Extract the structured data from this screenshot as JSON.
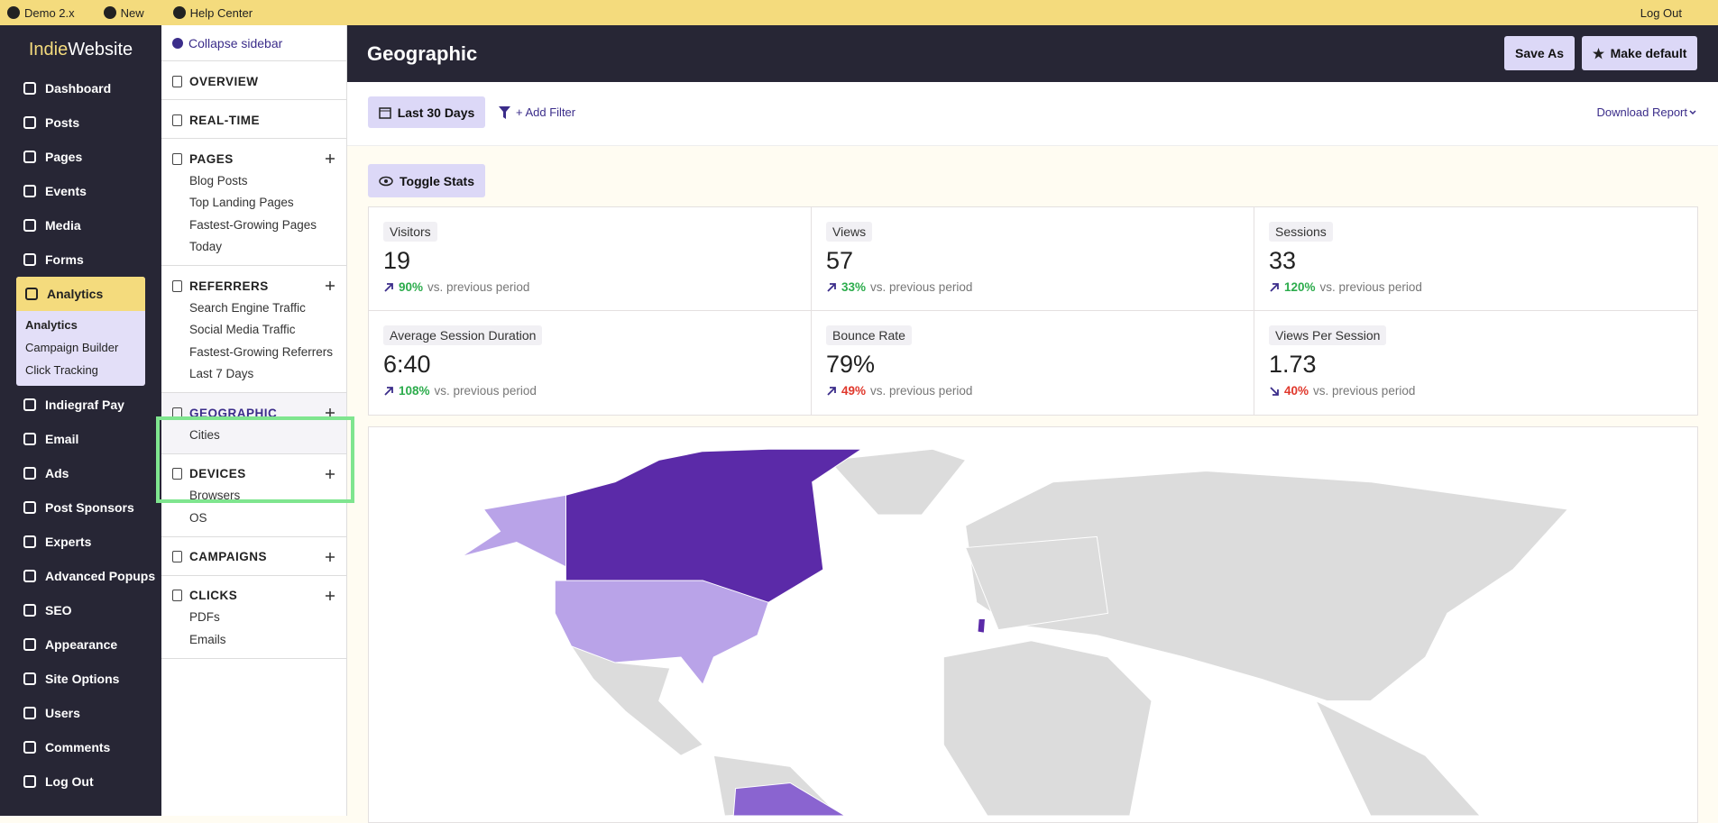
{
  "topbar": {
    "home": "Demo 2.x",
    "new": "New",
    "help": "Help Center",
    "logout": "Log Out"
  },
  "brand": {
    "first": "Indie",
    "second": "Website"
  },
  "nav": {
    "top": [
      "Dashboard",
      "Posts",
      "Pages",
      "Events",
      "Media",
      "Forms"
    ],
    "active": "Analytics",
    "submenu": [
      "Analytics",
      "Campaign Builder",
      "Click Tracking"
    ],
    "bottom": [
      "Indiegraf Pay",
      "Email",
      "Ads",
      "Post Sponsors",
      "Experts",
      "Advanced Popups",
      "SEO",
      "Appearance",
      "Site Options",
      "Users",
      "Comments",
      "Log Out"
    ]
  },
  "sidebar": {
    "collapse": "Collapse sidebar",
    "sections": [
      {
        "title": "OVERVIEW",
        "items": []
      },
      {
        "title": "REAL-TIME",
        "items": []
      },
      {
        "title": "PAGES",
        "items": [
          "Blog Posts",
          "Top Landing Pages",
          "Fastest-Growing Pages",
          "Today"
        ]
      },
      {
        "title": "REFERRERS",
        "items": [
          "Search Engine Traffic",
          "Social Media Traffic",
          "Fastest-Growing Referrers",
          "Last 7 Days"
        ]
      },
      {
        "title": "GEOGRAPHIC",
        "items": [
          "Cities"
        ]
      },
      {
        "title": "DEVICES",
        "items": [
          "Browsers",
          "OS"
        ]
      },
      {
        "title": "CAMPAIGNS",
        "items": []
      },
      {
        "title": "CLICKS",
        "items": [
          "PDFs",
          "Emails"
        ]
      }
    ]
  },
  "header": {
    "title": "Geographic",
    "save_as": "Save As",
    "make_default": "Make default"
  },
  "filters": {
    "range": "Last 30 Days",
    "add_filter": "+ Add Filter",
    "download": "Download Report"
  },
  "toggle_stats": "Toggle Stats",
  "stats": [
    {
      "label": "Visitors",
      "value": "19",
      "change": "90%",
      "trend": "up",
      "note": "vs. previous period"
    },
    {
      "label": "Views",
      "value": "57",
      "change": "33%",
      "trend": "up",
      "note": "vs. previous period"
    },
    {
      "label": "Sessions",
      "value": "33",
      "change": "120%",
      "trend": "up",
      "note": "vs. previous period"
    },
    {
      "label": "Average Session Duration",
      "value": "6:40",
      "change": "108%",
      "trend": "up",
      "note": "vs. previous period"
    },
    {
      "label": "Bounce Rate",
      "value": "79%",
      "change": "49%",
      "trend": "up-bad",
      "note": "vs. previous period"
    },
    {
      "label": "Views Per Session",
      "value": "1.73",
      "change": "40%",
      "trend": "down",
      "note": "vs. previous period"
    }
  ]
}
